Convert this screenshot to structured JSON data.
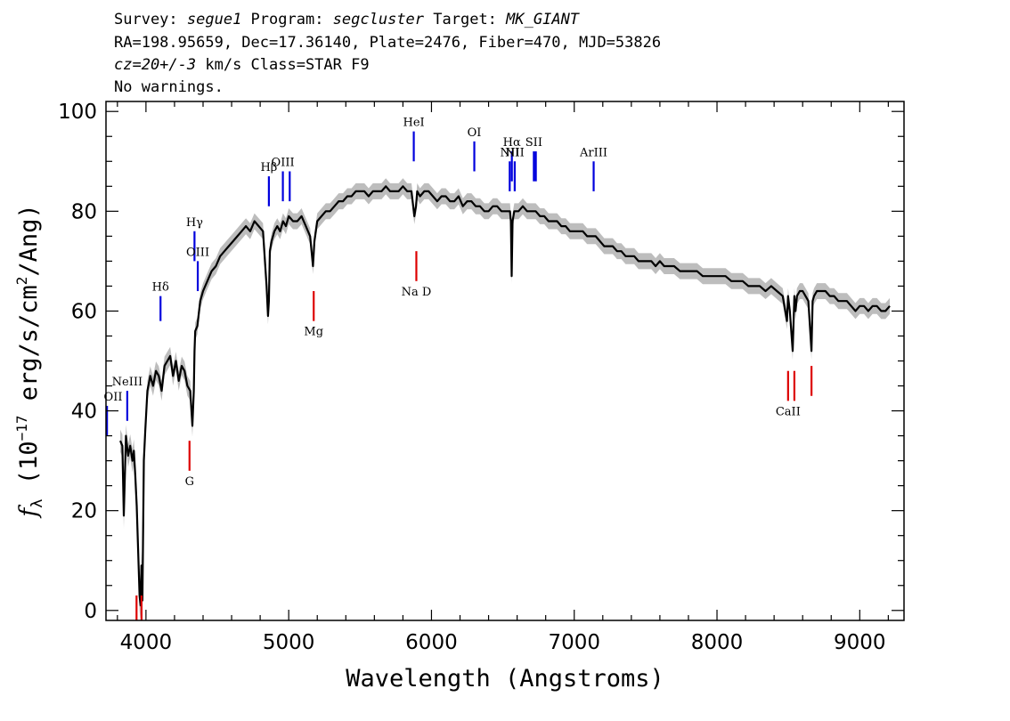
{
  "header": {
    "line1": [
      {
        "text": "Survey: ",
        "italic": false
      },
      {
        "text": "segue1",
        "italic": true
      },
      {
        "text": " Program: ",
        "italic": false
      },
      {
        "text": "segcluster",
        "italic": true
      },
      {
        "text": " Target: ",
        "italic": false
      },
      {
        "text": "MK_GIANT",
        "italic": true
      }
    ],
    "line2": "RA=198.95659, Dec=17.36140, Plate=2476, Fiber=470, MJD=53826",
    "line3": [
      {
        "text": "cz=20+/-3",
        "italic": true
      },
      {
        "text": " km/s Class=STAR F9",
        "italic": false
      }
    ],
    "line4": "No warnings."
  },
  "chart_data": {
    "type": "line",
    "xlabel": "Wavelength (Angstroms)",
    "ylabel": "f_λ (10^-17 erg/s/cm^2/Ang)",
    "ylabel_parts": {
      "f": "f",
      "sub": "λ",
      "unit_a": "(10",
      "exp1": "−17",
      "unit_b": " erg/s/cm",
      "exp2": "2",
      "unit_c": "/Ang)"
    },
    "xlim": [
      3720,
      9310
    ],
    "ylim": [
      -2,
      102
    ],
    "xticks": [
      4000,
      5000,
      6000,
      7000,
      8000,
      9000
    ],
    "yticks": [
      0,
      20,
      40,
      60,
      80,
      100
    ],
    "grid": false,
    "series": [
      {
        "role": "flux",
        "color": "#000000",
        "x": [
          3820,
          3835,
          3845,
          3860,
          3875,
          3890,
          3905,
          3915,
          3925,
          3935,
          3945,
          3955,
          3962,
          3968,
          3975,
          3985,
          3995,
          4010,
          4030,
          4050,
          4070,
          4090,
          4110,
          4130,
          4150,
          4170,
          4190,
          4210,
          4230,
          4250,
          4270,
          4290,
          4310,
          4325,
          4335,
          4340,
          4345,
          4360,
          4380,
          4400,
          4430,
          4460,
          4490,
          4520,
          4550,
          4580,
          4610,
          4640,
          4670,
          4700,
          4730,
          4760,
          4790,
          4820,
          4845,
          4855,
          4861,
          4868,
          4880,
          4900,
          4920,
          4940,
          4960,
          4980,
          5000,
          5030,
          5060,
          5090,
          5120,
          5150,
          5170,
          5180,
          5200,
          5230,
          5260,
          5290,
          5320,
          5350,
          5380,
          5410,
          5440,
          5470,
          5500,
          5530,
          5560,
          5590,
          5620,
          5650,
          5680,
          5710,
          5740,
          5770,
          5800,
          5830,
          5860,
          5880,
          5892,
          5900,
          5920,
          5950,
          5980,
          6010,
          6040,
          6070,
          6100,
          6130,
          6160,
          6190,
          6220,
          6250,
          6280,
          6310,
          6340,
          6370,
          6400,
          6430,
          6460,
          6490,
          6520,
          6550,
          6556,
          6562,
          6568,
          6580,
          6610,
          6640,
          6670,
          6700,
          6730,
          6760,
          6790,
          6820,
          6850,
          6880,
          6910,
          6940,
          6970,
          7000,
          7030,
          7060,
          7090,
          7120,
          7150,
          7180,
          7210,
          7240,
          7270,
          7300,
          7330,
          7360,
          7390,
          7420,
          7450,
          7480,
          7510,
          7540,
          7570,
          7600,
          7630,
          7660,
          7700,
          7740,
          7780,
          7820,
          7860,
          7900,
          7940,
          7980,
          8020,
          8060,
          8100,
          8140,
          8180,
          8220,
          8260,
          8300,
          8340,
          8380,
          8420,
          8460,
          8490,
          8498,
          8510,
          8530,
          8542,
          8550,
          8560,
          8580,
          8600,
          8620,
          8640,
          8662,
          8670,
          8680,
          8700,
          8730,
          8760,
          8790,
          8820,
          8850,
          8880,
          8910,
          8940,
          8970,
          9000,
          9030,
          9060,
          9090,
          9120,
          9150,
          9180,
          9210
        ],
        "values": [
          34,
          33,
          19,
          35,
          31,
          33,
          30,
          32,
          27,
          21,
          12,
          3,
          1,
          9,
          2,
          30,
          36,
          44,
          47,
          45,
          48,
          47,
          44,
          49,
          50,
          51,
          47,
          50,
          46,
          49,
          48,
          45,
          44,
          37,
          44,
          52,
          56,
          57,
          62,
          64,
          66,
          68,
          69,
          71,
          72,
          73,
          74,
          75,
          76,
          77,
          76,
          78,
          77,
          76,
          65,
          59,
          62,
          72,
          74,
          76,
          77,
          76,
          78,
          77,
          79,
          78,
          78,
          79,
          77,
          75,
          69,
          74,
          78,
          79,
          80,
          80,
          81,
          82,
          82,
          83,
          83,
          84,
          84,
          84,
          83,
          84,
          84,
          84,
          85,
          84,
          84,
          84,
          85,
          84,
          84,
          79,
          81,
          84,
          83,
          84,
          84,
          83,
          82,
          83,
          83,
          82,
          82,
          83,
          81,
          82,
          82,
          81,
          81,
          80,
          80,
          81,
          81,
          80,
          80,
          80,
          78,
          67,
          78,
          80,
          80,
          81,
          80,
          80,
          80,
          79,
          79,
          78,
          78,
          78,
          77,
          77,
          76,
          76,
          76,
          76,
          75,
          75,
          75,
          74,
          73,
          73,
          73,
          72,
          72,
          71,
          71,
          71,
          70,
          70,
          70,
          70,
          69,
          70,
          69,
          69,
          69,
          68,
          68,
          68,
          68,
          67,
          67,
          67,
          67,
          67,
          66,
          66,
          66,
          65,
          65,
          65,
          64,
          65,
          64,
          63,
          58,
          63,
          60,
          52,
          63,
          60,
          63,
          64,
          64,
          63,
          62,
          52,
          62,
          63,
          64,
          64,
          64,
          63,
          63,
          62,
          62,
          62,
          61,
          60,
          61,
          61,
          60,
          61,
          61,
          60,
          60,
          61
        ]
      }
    ],
    "emission_lines": [
      {
        "label": "OII",
        "x": 3727,
        "y1": 35,
        "y2": 41
      },
      {
        "label": "NeIII",
        "x": 3869,
        "y1": 38,
        "y2": 44
      },
      {
        "label": "Hδ",
        "x": 4102,
        "y1": 58,
        "y2": 63
      },
      {
        "label": "Hγ",
        "x": 4340,
        "y1": 70,
        "y2": 76
      },
      {
        "label": "OIII",
        "x": 4363,
        "y1": 64,
        "y2": 70
      },
      {
        "label": "Hβ",
        "x": 4861,
        "y1": 81,
        "y2": 87
      },
      {
        "label": "OIII",
        "x": 4959,
        "y1": 82,
        "y2": 88
      },
      {
        "label": "OIII",
        "x": 5007,
        "y1": 82,
        "y2": 88
      },
      {
        "label": "HeI",
        "x": 5876,
        "y1": 90,
        "y2": 96
      },
      {
        "label": "OI",
        "x": 6300,
        "y1": 88,
        "y2": 94
      },
      {
        "label": "NII",
        "x": 6548,
        "y1": 84,
        "y2": 90
      },
      {
        "label": "Hα",
        "x": 6563,
        "y1": 86,
        "y2": 92
      },
      {
        "label": "NII",
        "x": 6583,
        "y1": 84,
        "y2": 90
      },
      {
        "label": "SII",
        "x": 6717,
        "y1": 86,
        "y2": 92
      },
      {
        "label": "SII",
        "x": 6731,
        "y1": 86,
        "y2": 92
      },
      {
        "label": "ArIII",
        "x": 7136,
        "y1": 84,
        "y2": 90
      }
    ],
    "absorption_lines": [
      {
        "label": "",
        "x": 3934,
        "y1": -2,
        "y2": 3
      },
      {
        "label": "",
        "x": 3969,
        "y1": -2,
        "y2": 3
      },
      {
        "label": "G",
        "x": 4305,
        "y1": 28,
        "y2": 34
      },
      {
        "label": "Mg",
        "x": 5175,
        "y1": 58,
        "y2": 64
      },
      {
        "label": "Na D",
        "x": 5894,
        "y1": 66,
        "y2": 72
      },
      {
        "label": "CaII",
        "x": 8498,
        "y1": 42,
        "y2": 48
      },
      {
        "label": "",
        "x": 8542,
        "y1": 42,
        "y2": 48
      },
      {
        "label": "",
        "x": 8662,
        "y1": 43,
        "y2": 49
      }
    ],
    "colors": {
      "flux": "#000000",
      "error": "#bdbdbd",
      "emission": "#0000dd",
      "absorption": "#dd0000"
    }
  }
}
